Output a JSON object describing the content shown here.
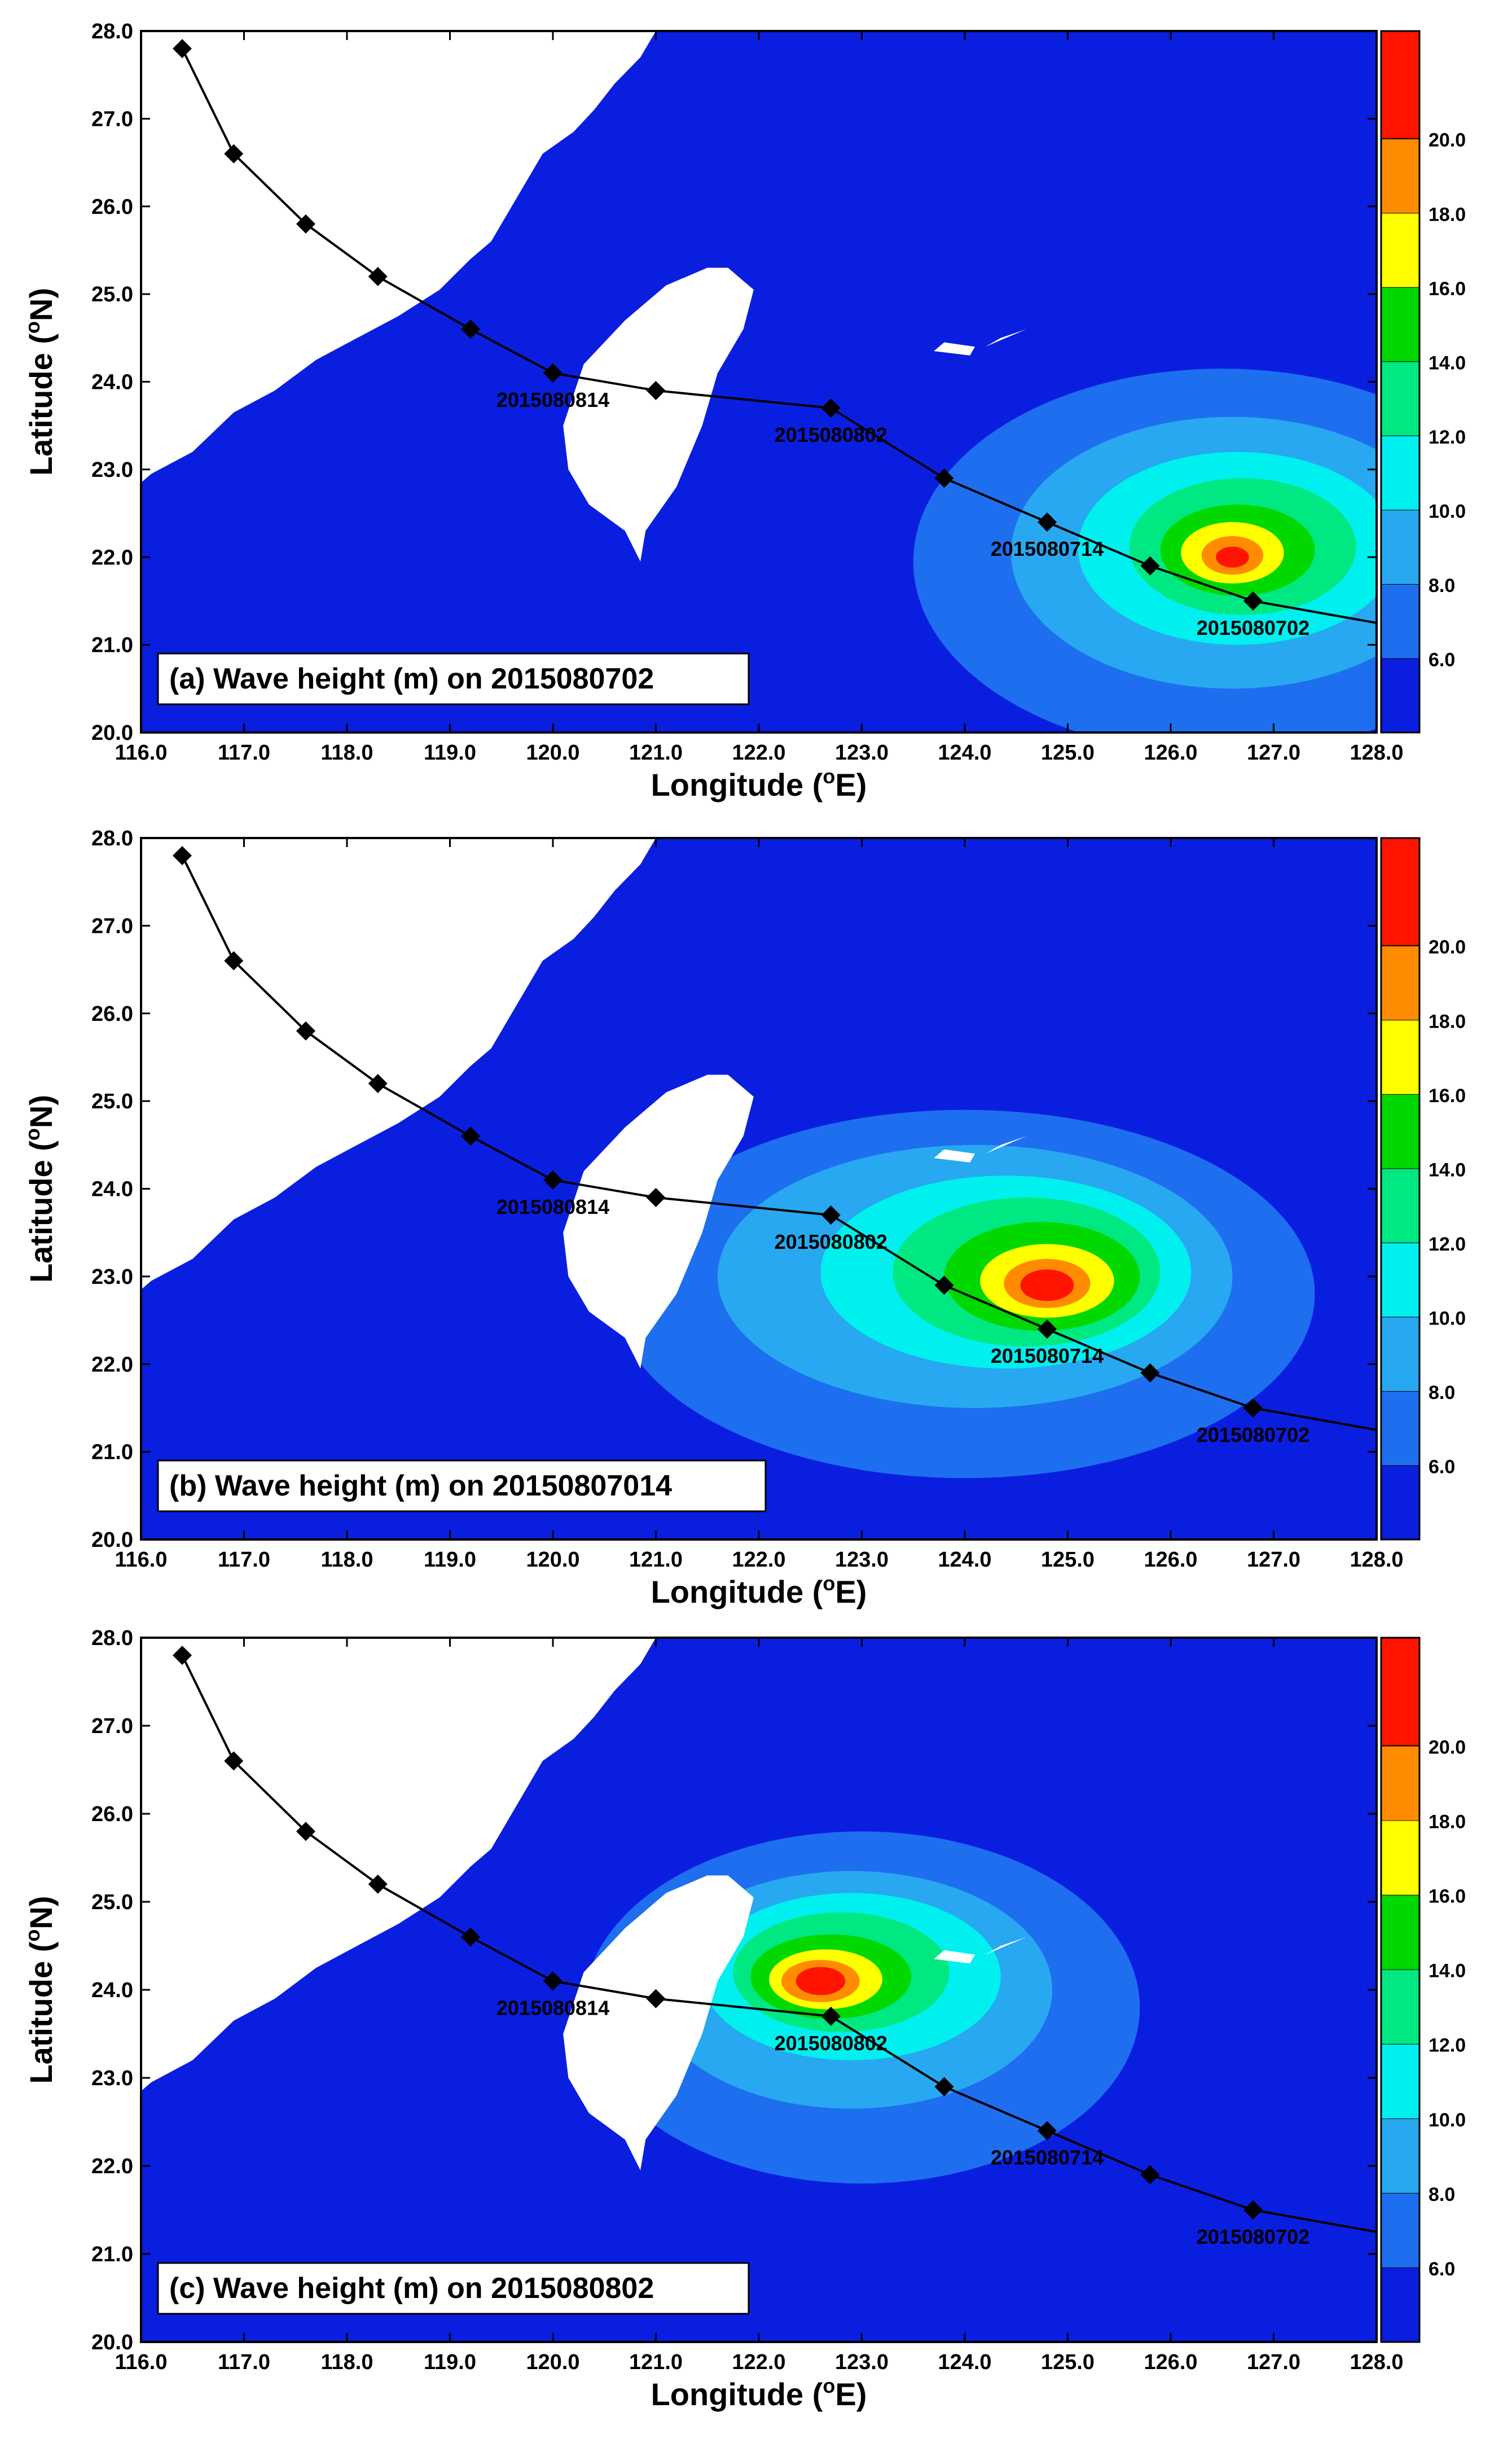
{
  "colors": {
    "sea": "#0a1ee0",
    "land": "#ffffff",
    "levels": [
      "#0a1ee0",
      "#1e6ef0",
      "#28a8f0",
      "#00f0f0",
      "#00e882",
      "#00d800",
      "#ffff00",
      "#ff8c00",
      "#ff1400"
    ]
  },
  "colorbar": {
    "labels": [
      "6.0",
      "8.0",
      "10.0",
      "12.0",
      "14.0",
      "16.0",
      "18.0",
      "20.0"
    ]
  },
  "axes": {
    "xlabel": "Longitude (",
    "xlabel_sup": "o",
    "xlabel_end": "E)",
    "ylabel": "Latitude (",
    "ylabel_sup": "o",
    "ylabel_end": "N)",
    "xlim": [
      116.0,
      128.0
    ],
    "ylim": [
      20.0,
      28.0
    ],
    "xticks": [
      "116.0",
      "117.0",
      "118.0",
      "119.0",
      "120.0",
      "121.0",
      "122.0",
      "123.0",
      "124.0",
      "125.0",
      "126.0",
      "127.0",
      "128.0"
    ],
    "yticks": [
      "20.0",
      "21.0",
      "22.0",
      "23.0",
      "24.0",
      "25.0",
      "26.0",
      "27.0",
      "28.0"
    ]
  },
  "chart_data": [
    {
      "type": "heatmap",
      "title": "(a) Wave height (m) on 2015080702",
      "peak": {
        "lon": 126.6,
        "lat": 22.0
      },
      "track_labels": [
        {
          "text": "2015080814",
          "lon": 120.0,
          "lat": 24.1
        },
        {
          "text": "2015080802",
          "lon": 122.7,
          "lat": 23.7
        },
        {
          "text": "2015080714",
          "lon": 124.8,
          "lat": 22.4
        },
        {
          "text": "2015080702",
          "lon": 126.8,
          "lat": 21.5
        }
      ]
    },
    {
      "type": "heatmap",
      "title": "(b) Wave height (m) on 20150807014",
      "peak": {
        "lon": 124.8,
        "lat": 22.9
      },
      "track_labels": [
        {
          "text": "2015080814",
          "lon": 120.0,
          "lat": 24.1
        },
        {
          "text": "2015080802",
          "lon": 122.7,
          "lat": 23.7
        },
        {
          "text": "2015080714",
          "lon": 124.8,
          "lat": 22.4
        },
        {
          "text": "2015080702",
          "lon": 126.8,
          "lat": 21.5
        }
      ]
    },
    {
      "type": "heatmap",
      "title": "(c) Wave height (m) on 2015080802",
      "peak": {
        "lon": 122.6,
        "lat": 24.1
      },
      "track_labels": [
        {
          "text": "2015080814",
          "lon": 120.0,
          "lat": 24.1
        },
        {
          "text": "2015080802",
          "lon": 122.7,
          "lat": 23.7
        },
        {
          "text": "2015080714",
          "lon": 124.8,
          "lat": 22.4
        },
        {
          "text": "2015080702",
          "lon": 126.8,
          "lat": 21.5
        }
      ]
    }
  ],
  "track": [
    {
      "lon": 116.4,
      "lat": 27.8
    },
    {
      "lon": 116.9,
      "lat": 26.6
    },
    {
      "lon": 117.6,
      "lat": 25.8
    },
    {
      "lon": 118.3,
      "lat": 25.2
    },
    {
      "lon": 119.2,
      "lat": 24.6
    },
    {
      "lon": 120.0,
      "lat": 24.1
    },
    {
      "lon": 121.0,
      "lat": 23.9
    },
    {
      "lon": 122.7,
      "lat": 23.7
    },
    {
      "lon": 123.8,
      "lat": 22.9
    },
    {
      "lon": 124.8,
      "lat": 22.4
    },
    {
      "lon": 125.8,
      "lat": 21.9
    },
    {
      "lon": 126.8,
      "lat": 21.5
    },
    {
      "lon": 128.0,
      "lat": 21.25
    }
  ]
}
